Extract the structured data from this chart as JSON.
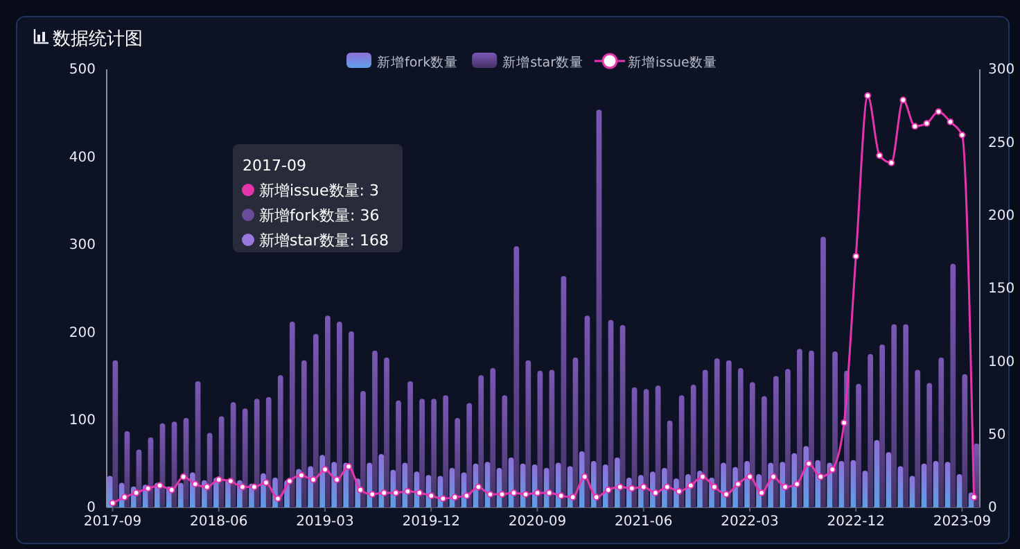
{
  "chart_data": {
    "type": "bar",
    "title": "数据统计图",
    "categories": [
      "2017-09",
      null,
      null,
      null,
      null,
      null,
      null,
      null,
      null,
      "2018-06",
      null,
      null,
      null,
      null,
      null,
      null,
      null,
      null,
      "2019-03",
      null,
      null,
      null,
      null,
      null,
      null,
      null,
      null,
      "2019-12",
      null,
      null,
      null,
      null,
      null,
      null,
      null,
      null,
      "2020-09",
      null,
      null,
      null,
      null,
      null,
      null,
      null,
      null,
      "2021-06",
      null,
      null,
      null,
      null,
      null,
      null,
      null,
      null,
      "2022-03",
      null,
      null,
      null,
      null,
      null,
      null,
      null,
      null,
      "2022-12",
      null,
      null,
      null,
      null,
      null,
      null,
      null,
      null,
      "2023-09",
      null
    ],
    "series": [
      {
        "name": "新增fork数量",
        "color": "#5f9ee6",
        "values": [
          36,
          28,
          24,
          26,
          28,
          24,
          28,
          40,
          31,
          34,
          32,
          31,
          27,
          39,
          34,
          31,
          44,
          47,
          60,
          52,
          51,
          33,
          51,
          61,
          43,
          51,
          41,
          37,
          36,
          45,
          40,
          50,
          52,
          45,
          57,
          50,
          49,
          45,
          51,
          47,
          64,
          53,
          49,
          57,
          34,
          37,
          41,
          45,
          33,
          38,
          42,
          34,
          51,
          46,
          53,
          38,
          51,
          52,
          62,
          70,
          54,
          51,
          53,
          54,
          42,
          77,
          63,
          47,
          36,
          50,
          53,
          52,
          38,
          17
        ]
      },
      {
        "name": "新增star数量",
        "color": "#6a4c9c",
        "values": [
          168,
          87,
          66,
          80,
          96,
          98,
          102,
          144,
          85,
          104,
          120,
          113,
          124,
          126,
          151,
          212,
          168,
          198,
          219,
          212,
          201,
          133,
          179,
          171,
          122,
          144,
          124,
          124,
          128,
          102,
          119,
          151,
          159,
          128,
          298,
          168,
          156,
          157,
          264,
          171,
          219,
          454,
          214,
          208,
          137,
          135,
          139,
          99,
          128,
          140,
          157,
          170,
          168,
          159,
          143,
          127,
          150,
          158,
          181,
          179,
          309,
          178,
          156,
          141,
          175,
          186,
          209,
          209,
          157,
          142,
          171,
          278,
          152,
          73
        ]
      },
      {
        "name": "新增issue数量",
        "type": "line",
        "axis": "y2",
        "color": "#e535ad",
        "values": [
          3,
          7,
          10,
          13,
          15,
          12,
          21,
          16,
          14,
          19,
          18,
          14,
          14,
          17,
          6,
          18,
          22,
          19,
          26,
          19,
          28,
          12,
          9,
          10,
          10,
          11,
          10,
          8,
          6,
          7,
          8,
          14,
          9,
          9,
          10,
          9,
          10,
          10,
          8,
          7,
          21,
          7,
          12,
          14,
          13,
          14,
          10,
          14,
          11,
          15,
          21,
          14,
          9,
          16,
          21,
          10,
          21,
          14,
          16,
          30,
          21,
          26,
          58,
          172,
          282,
          241,
          236,
          279,
          261,
          263,
          271,
          264,
          255,
          7
        ]
      }
    ],
    "ylim": [
      0,
      500
    ],
    "yticks": [
      0,
      100,
      200,
      300,
      400,
      500
    ],
    "y2lim": [
      0,
      300
    ],
    "y2ticks": [
      0,
      50,
      100,
      150,
      200,
      250,
      300
    ],
    "legend": "top",
    "marker": "circle",
    "annotations": [
      "2017-09",
      "新增issue数量: 3",
      "新增fork数量: 36",
      "新增star数量: 168"
    ]
  }
}
